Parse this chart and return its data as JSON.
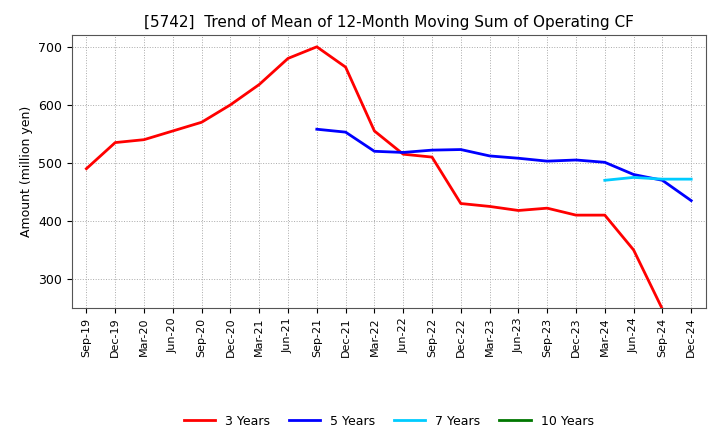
{
  "title": "[5742]  Trend of Mean of 12-Month Moving Sum of Operating CF",
  "ylabel": "Amount (million yen)",
  "xlabels": [
    "Sep-19",
    "Dec-19",
    "Mar-20",
    "Jun-20",
    "Sep-20",
    "Dec-20",
    "Mar-21",
    "Jun-21",
    "Sep-21",
    "Dec-21",
    "Mar-22",
    "Jun-22",
    "Sep-22",
    "Dec-22",
    "Mar-23",
    "Jun-23",
    "Sep-23",
    "Dec-23",
    "Mar-24",
    "Jun-24",
    "Sep-24",
    "Dec-24"
  ],
  "ylim": [
    250,
    720
  ],
  "yticks": [
    300,
    400,
    500,
    600,
    700
  ],
  "series": {
    "3 Years": {
      "color": "#FF0000",
      "data_x": [
        0,
        1,
        2,
        3,
        4,
        5,
        6,
        7,
        8,
        9,
        10,
        11,
        12,
        13,
        14,
        15,
        16,
        17,
        18,
        19,
        20
      ],
      "data_y": [
        490,
        535,
        540,
        555,
        570,
        600,
        635,
        680,
        700,
        665,
        555,
        515,
        510,
        430,
        425,
        418,
        422,
        410,
        410,
        350,
        248
      ]
    },
    "5 Years": {
      "color": "#0000FF",
      "data_x": [
        8,
        9,
        10,
        11,
        12,
        13,
        14,
        15,
        16,
        17,
        18,
        19,
        20,
        21
      ],
      "data_y": [
        558,
        553,
        520,
        518,
        522,
        523,
        512,
        508,
        503,
        505,
        501,
        480,
        470,
        435
      ]
    },
    "7 Years": {
      "color": "#00CCFF",
      "data_x": [
        18,
        19,
        20,
        21
      ],
      "data_y": [
        470,
        475,
        472,
        472
      ]
    },
    "10 Years": {
      "color": "#007700",
      "data_x": [],
      "data_y": []
    }
  },
  "background_color": "#FFFFFF",
  "grid_color": "#AAAAAA",
  "title_fontsize": 11,
  "axis_fontsize": 9,
  "legend_fontsize": 9
}
